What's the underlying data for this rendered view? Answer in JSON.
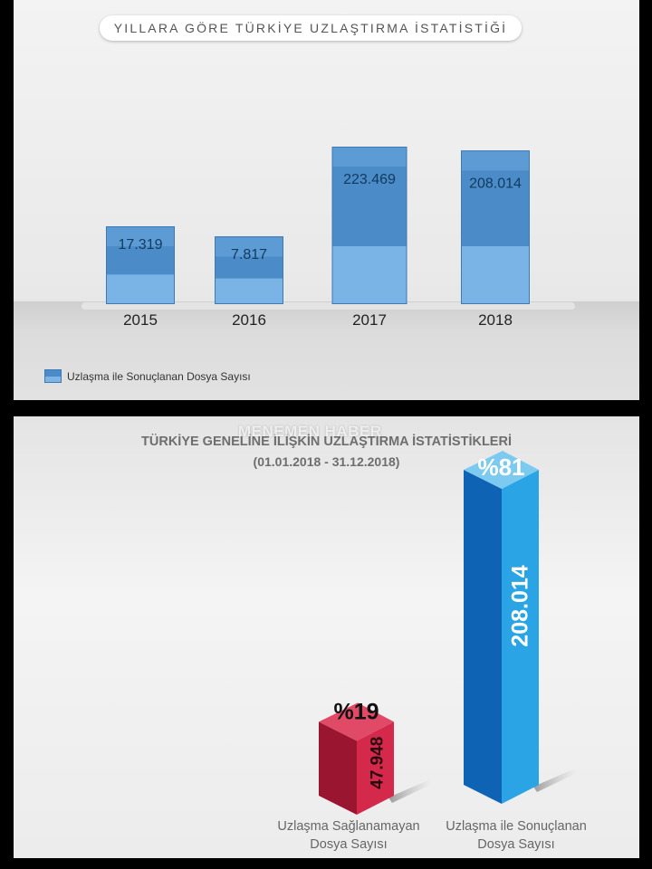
{
  "top": {
    "title": "YILLARA GÖRE TÜRKİYE UZLAŞTIRMA İSTATİSTİĞİ",
    "legend": "Uzlaşma ile Sonuçlanan Dosya Sayısı"
  },
  "bottom": {
    "watermark": "MENEMEN HABER",
    "title": "TÜRKİYE GENELİNE İLİŞKİN UZLAŞTIRMA İSTATİSTİKLERİ",
    "subtitle": "(01.01.2018 - 31.12.2018)",
    "categories": [
      {
        "line1": "Uzlaşma Sağlanamayan",
        "line2": "Dosya Sayısı"
      },
      {
        "line1": "Uzlaşma ile Sonuçlanan",
        "line2": "Dosya Sayısı"
      }
    ]
  },
  "chart_data": [
    {
      "type": "bar",
      "title": "YILLARA GÖRE TÜRKİYE UZLAŞTIRMA İSTATİSTİĞİ",
      "categories": [
        "2015",
        "2016",
        "2017",
        "2018"
      ],
      "values": [
        17319,
        7817,
        223469,
        208014
      ],
      "value_labels": [
        "17.319",
        "7.817",
        "223.469",
        "208.014"
      ],
      "series": [
        {
          "name": "Uzlaşma ile Sonuçlanan Dosya Sayısı",
          "values": [
            17319,
            7817,
            223469,
            208014
          ]
        }
      ],
      "colors": {
        "bar_top": "#4a8bc8",
        "bar_bottom": "#7ab3e5"
      },
      "legend_position": "bottom-left"
    },
    {
      "type": "bar",
      "title": "TÜRKİYE GENELİNE İLİŞKİN UZLAŞTIRMA İSTATİSTİKLERİ",
      "subtitle": "(01.01.2018 - 31.12.2018)",
      "categories": [
        "Uzlaşma Sağlanamayan Dosya Sayısı",
        "Uzlaşma ile Sonuçlanan Dosya Sayısı"
      ],
      "values": [
        47948,
        208014
      ],
      "value_labels": [
        "47.948",
        "208.014"
      ],
      "percent_labels": [
        "%19",
        "%81"
      ],
      "percents": [
        19,
        81
      ],
      "colors": [
        "#d42a48",
        "#1e88d8"
      ]
    }
  ]
}
